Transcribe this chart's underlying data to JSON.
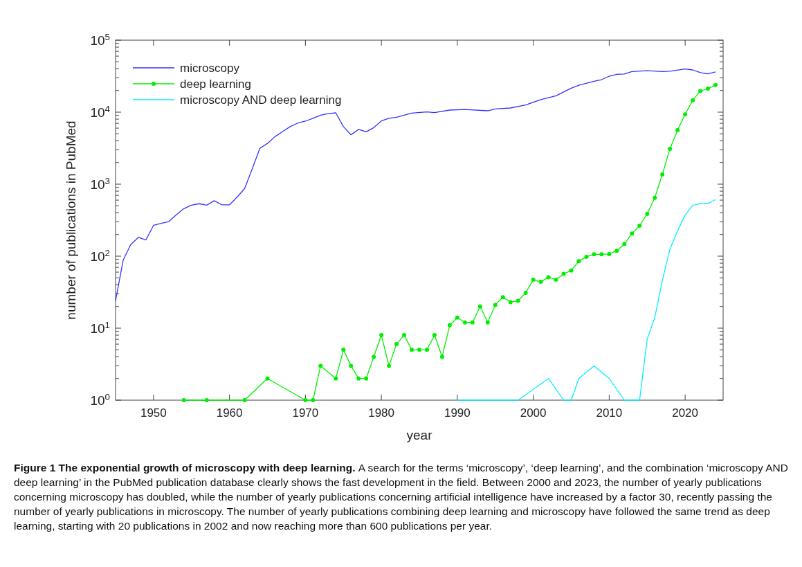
{
  "chart_data": {
    "type": "line",
    "xlabel": "year",
    "ylabel": "number of publications in PubMed",
    "log": "y",
    "xlim": [
      1945,
      2025
    ],
    "xticks": [
      1950,
      1960,
      1970,
      1980,
      1990,
      2000,
      2010,
      2020
    ],
    "ylim": [
      1,
      100000
    ],
    "yticks": [
      {
        "value": 1,
        "label": "10$^{0}$"
      },
      {
        "value": 2,
        "label": null
      },
      {
        "value": 3,
        "label": null
      },
      {
        "value": 4,
        "label": null
      },
      {
        "value": 5,
        "label": null
      },
      {
        "value": 6,
        "label": null
      },
      {
        "value": 7,
        "label": null
      },
      {
        "value": 8,
        "label": null
      },
      {
        "value": 9,
        "label": null
      },
      {
        "value": 10,
        "label": "10$^{1}$"
      },
      {
        "value": 20,
        "label": null
      },
      {
        "value": 30,
        "label": null
      },
      {
        "value": 40,
        "label": null
      },
      {
        "value": 50,
        "label": null
      },
      {
        "value": 60,
        "label": null
      },
      {
        "value": 70,
        "label": null
      },
      {
        "value": 80,
        "label": null
      },
      {
        "value": 90,
        "label": null
      },
      {
        "value": 100,
        "label": "10$^{2}$"
      },
      {
        "value": 200,
        "label": null
      },
      {
        "value": 300,
        "label": null
      },
      {
        "value": 400,
        "label": null
      },
      {
        "value": 500,
        "label": null
      },
      {
        "value": 600,
        "label": null
      },
      {
        "value": 700,
        "label": null
      },
      {
        "value": 800,
        "label": null
      },
      {
        "value": 900,
        "label": null
      },
      {
        "value": 1000,
        "label": "10$^{3}$"
      },
      {
        "value": 2000,
        "label": null
      },
      {
        "value": 3000,
        "label": null
      },
      {
        "value": 4000,
        "label": null
      },
      {
        "value": 5000,
        "label": null
      },
      {
        "value": 6000,
        "label": null
      },
      {
        "value": 7000,
        "label": null
      },
      {
        "value": 8000,
        "label": null
      },
      {
        "value": 9000,
        "label": null
      },
      {
        "value": 10000,
        "label": "10$^{4}$"
      },
      {
        "value": 20000,
        "label": null
      },
      {
        "value": 30000,
        "label": null
      },
      {
        "value": 40000,
        "label": null
      },
      {
        "value": 50000,
        "label": null
      },
      {
        "value": 60000,
        "label": null
      },
      {
        "value": 70000,
        "label": null
      },
      {
        "value": 80000,
        "label": null
      },
      {
        "value": 90000,
        "label": null
      },
      {
        "value": 100000,
        "label": "10$^{5}$"
      }
    ],
    "grid": false,
    "legend": "top left",
    "line_style": "solid",
    "series": [
      {
        "name": "microscopy",
        "color": "#3333ff",
        "marker": "none",
        "x": [
          1945,
          1946,
          1947,
          1948,
          1949,
          1950,
          1951,
          1952,
          1953,
          1954,
          1955,
          1956,
          1957,
          1958,
          1959,
          1960,
          1961,
          1962,
          1963,
          1964,
          1965,
          1966,
          1967,
          1968,
          1969,
          1970,
          1971,
          1972,
          1973,
          1974,
          1975,
          1976,
          1977,
          1978,
          1979,
          1980,
          1981,
          1982,
          1984,
          1986,
          1987,
          1989,
          1991,
          1994,
          1995,
          1997,
          1999,
          2001,
          2003,
          2005,
          2006,
          2008,
          2009,
          2010,
          2011,
          2012,
          2013,
          2015,
          2017,
          2018,
          2020,
          2021,
          2022,
          2023,
          2024
        ],
        "values": [
          24,
          88,
          145,
          182,
          168,
          268,
          285,
          302,
          375,
          457,
          510,
          535,
          510,
          590,
          515,
          515,
          660,
          870,
          1640,
          3150,
          3680,
          4570,
          5370,
          6300,
          7060,
          7500,
          8220,
          9060,
          9550,
          9780,
          6300,
          4850,
          5760,
          5330,
          6100,
          7550,
          8230,
          8500,
          9700,
          10070,
          9860,
          10690,
          10920,
          10450,
          11100,
          11420,
          12590,
          14900,
          16900,
          21500,
          23600,
          26900,
          28300,
          31600,
          33600,
          33900,
          36600,
          37700,
          36600,
          37000,
          39700,
          38600,
          35500,
          34000,
          36300
        ]
      },
      {
        "name": "deep learning",
        "color": "#00ee00",
        "marker": "circle",
        "x": [
          1954,
          1957,
          1962,
          1965,
          1970,
          1971,
          1972,
          1974,
          1975,
          1976,
          1977,
          1978,
          1979,
          1980,
          1981,
          1982,
          1983,
          1984,
          1985,
          1986,
          1987,
          1988,
          1989,
          1990,
          1991,
          1992,
          1993,
          1994,
          1995,
          1996,
          1997,
          1998,
          1999,
          2000,
          2001,
          2002,
          2003,
          2004,
          2005,
          2006,
          2007,
          2008,
          2009,
          2010,
          2011,
          2012,
          2013,
          2014,
          2015,
          2016,
          2017,
          2018,
          2019,
          2020,
          2021,
          2022,
          2023,
          2024
        ],
        "values": [
          1,
          1,
          1,
          2,
          1,
          1,
          3,
          2,
          5,
          3,
          2,
          2,
          4,
          8,
          3,
          6,
          8,
          5,
          5,
          5,
          8,
          4,
          11,
          14,
          12,
          12,
          20,
          12,
          21,
          27,
          23,
          24,
          31,
          47,
          44,
          51,
          47,
          57,
          63,
          85,
          98,
          106,
          106,
          107,
          119,
          147,
          206,
          265,
          386,
          645,
          1365,
          3100,
          5620,
          9300,
          14600,
          19700,
          21200,
          23900
        ]
      },
      {
        "name": "microscopy AND deep learning",
        "color": "#00eeff",
        "marker": "none",
        "x": [
          1990,
          1998,
          2002,
          2004,
          2005,
          2006,
          2008,
          2010,
          2012,
          2014,
          2015,
          2016,
          2017,
          2018,
          2019,
          2020,
          2021,
          2022,
          2023,
          2024
        ],
        "values": [
          1,
          1,
          2,
          1,
          1,
          2,
          3,
          2,
          1,
          1,
          7,
          14,
          46,
          125,
          225,
          370,
          507,
          537,
          540,
          611
        ]
      }
    ],
    "annotations": [
      "Figure 1 The exponential growth of microscopy with deep learning.",
      "A search for the terms ‘microscopy’, ‘deep learning’, and the combination ‘microscopy AND deep learning’ in the PubMed publication database clearly shows the fast development in the field. Between 2000 and 2023, the number of yearly publications concerning microscopy has doubled, while the number of yearly publications concerning artificial intelligence have increased by a factor 30, recently passing the number of yearly publications in microscopy. The number of yearly publications combining deep learning and microscopy have followed the same trend as deep learning, starting with 20 publications in 2002 and now reaching more than 600 publications per year."
    ]
  }
}
